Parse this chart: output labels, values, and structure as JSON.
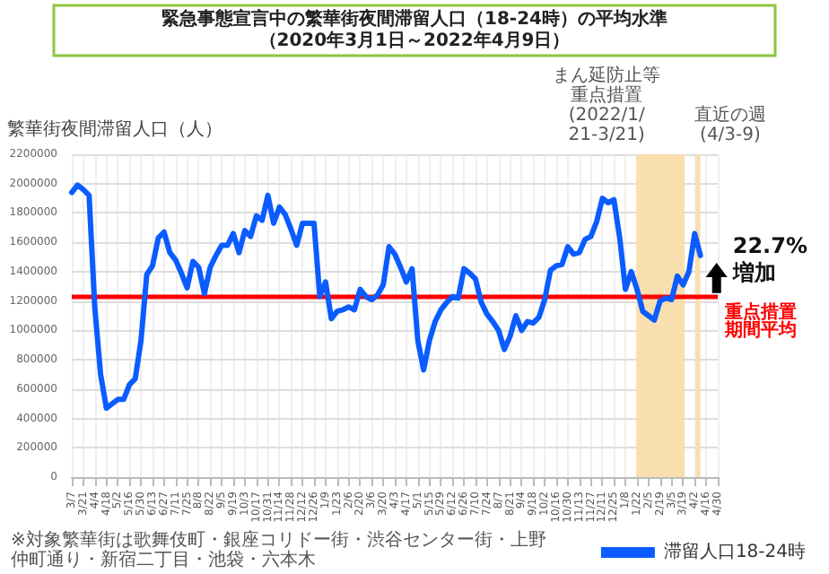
{
  "chart_data": {
    "type": "line",
    "title": "緊急事態宣言中の繁華街夜間滞留人口（18-24時）の平均水準",
    "subtitle": "（2020年3月1日～2022年4月9日）",
    "ylabel": "繁華街夜間滞留人口（人）",
    "x": [
      "2020-03-07",
      "2020-03-14",
      "2020-03-21",
      "2020-03-28",
      "2020-04-04",
      "2020-04-11",
      "2020-04-18",
      "2020-04-25",
      "2020-05-02",
      "2020-05-09",
      "2020-05-16",
      "2020-05-23",
      "2020-05-30",
      "2020-06-06",
      "2020-06-13",
      "2020-06-20",
      "2020-06-27",
      "2020-07-04",
      "2020-07-11",
      "2020-07-18",
      "2020-07-25",
      "2020-08-01",
      "2020-08-08",
      "2020-08-15",
      "2020-08-22",
      "2020-08-29",
      "2020-09-05",
      "2020-09-12",
      "2020-09-19",
      "2020-09-26",
      "2020-10-03",
      "2020-10-10",
      "2020-10-17",
      "2020-10-24",
      "2020-10-31",
      "2020-11-07",
      "2020-11-14",
      "2020-11-21",
      "2020-11-28",
      "2020-12-05",
      "2020-12-12",
      "2020-12-19",
      "2020-12-26",
      "2021-01-02",
      "2021-01-09",
      "2021-01-16",
      "2021-01-23",
      "2021-01-30",
      "2021-02-06",
      "2021-02-13",
      "2021-02-20",
      "2021-02-27",
      "2021-03-06",
      "2021-03-13",
      "2021-03-20",
      "2021-03-27",
      "2021-04-03",
      "2021-04-10",
      "2021-04-17",
      "2021-04-24",
      "2021-05-01",
      "2021-05-08",
      "2021-05-15",
      "2021-05-22",
      "2021-05-29",
      "2021-06-05",
      "2021-06-12",
      "2021-06-19",
      "2021-06-26",
      "2021-07-03",
      "2021-07-10",
      "2021-07-17",
      "2021-07-24",
      "2021-07-31",
      "2021-08-07",
      "2021-08-14",
      "2021-08-21",
      "2021-08-28",
      "2021-09-04",
      "2021-09-11",
      "2021-09-18",
      "2021-09-25",
      "2021-10-02",
      "2021-10-09",
      "2021-10-16",
      "2021-10-23",
      "2021-10-30",
      "2021-11-06",
      "2021-11-13",
      "2021-11-20",
      "2021-11-27",
      "2021-12-04",
      "2021-12-11",
      "2021-12-18",
      "2021-12-25",
      "2022-01-01",
      "2022-01-08",
      "2022-01-15",
      "2022-01-22",
      "2022-01-29",
      "2022-02-05",
      "2022-02-12",
      "2022-02-19",
      "2022-02-26",
      "2022-03-05",
      "2022-03-12",
      "2022-03-19",
      "2022-03-26",
      "2022-04-02",
      "2022-04-09"
    ],
    "series": [
      {
        "name": "滞留人口18-24時",
        "color": "#0a5cff",
        "values": [
          1940000,
          1990000,
          1960000,
          1920000,
          1150000,
          700000,
          470000,
          500000,
          530000,
          530000,
          630000,
          670000,
          930000,
          1380000,
          1440000,
          1630000,
          1670000,
          1530000,
          1480000,
          1390000,
          1290000,
          1470000,
          1430000,
          1250000,
          1430000,
          1510000,
          1580000,
          1580000,
          1660000,
          1530000,
          1680000,
          1640000,
          1780000,
          1750000,
          1920000,
          1730000,
          1840000,
          1790000,
          1690000,
          1580000,
          1730000,
          1730000,
          1730000,
          1230000,
          1330000,
          1080000,
          1130000,
          1140000,
          1160000,
          1140000,
          1280000,
          1230000,
          1210000,
          1240000,
          1310000,
          1570000,
          1520000,
          1430000,
          1330000,
          1420000,
          930000,
          730000,
          930000,
          1060000,
          1140000,
          1190000,
          1230000,
          1220000,
          1420000,
          1390000,
          1350000,
          1190000,
          1110000,
          1060000,
          1000000,
          870000,
          960000,
          1100000,
          1000000,
          1060000,
          1050000,
          1090000,
          1210000,
          1410000,
          1440000,
          1450000,
          1570000,
          1520000,
          1530000,
          1620000,
          1640000,
          1740000,
          1900000,
          1870000,
          1890000,
          1630000,
          1280000,
          1400000,
          1280000,
          1130000,
          1100000,
          1070000,
          1200000,
          1220000,
          1210000,
          1370000,
          1310000,
          1400000,
          1660000,
          1510000
        ]
      }
    ],
    "xlim": [
      "2020-03-07",
      "2022-04-30"
    ],
    "xticks": [
      {
        "value": "2020-03-07",
        "label": "3/7"
      },
      {
        "value": "2020-03-21",
        "label": "3/21"
      },
      {
        "value": "2020-04-04",
        "label": "4/4"
      },
      {
        "value": "2020-04-18",
        "label": "4/18"
      },
      {
        "value": "2020-05-02",
        "label": "5/2"
      },
      {
        "value": "2020-05-16",
        "label": "5/16"
      },
      {
        "value": "2020-05-30",
        "label": "5/30"
      },
      {
        "value": "2020-06-13",
        "label": "6/13"
      },
      {
        "value": "2020-06-27",
        "label": "6/27"
      },
      {
        "value": "2020-07-11",
        "label": "7/11"
      },
      {
        "value": "2020-07-25",
        "label": "7/25"
      },
      {
        "value": "2020-08-08",
        "label": "8/8"
      },
      {
        "value": "2020-08-22",
        "label": "8/22"
      },
      {
        "value": "2020-09-05",
        "label": "9/5"
      },
      {
        "value": "2020-09-19",
        "label": "9/19"
      },
      {
        "value": "2020-10-03",
        "label": "10/3"
      },
      {
        "value": "2020-10-17",
        "label": "10/17"
      },
      {
        "value": "2020-10-31",
        "label": "10/31"
      },
      {
        "value": "2020-11-14",
        "label": "11/14"
      },
      {
        "value": "2020-11-28",
        "label": "11/28"
      },
      {
        "value": "2020-12-12",
        "label": "12/12"
      },
      {
        "value": "2020-12-26",
        "label": "12/26"
      },
      {
        "value": "2021-01-09",
        "label": "1/9"
      },
      {
        "value": "2021-01-23",
        "label": "1/23"
      },
      {
        "value": "2021-02-06",
        "label": "2/6"
      },
      {
        "value": "2021-02-20",
        "label": "2/20"
      },
      {
        "value": "2021-03-06",
        "label": "3/6"
      },
      {
        "value": "2021-03-20",
        "label": "3/20"
      },
      {
        "value": "2021-04-03",
        "label": "4/3"
      },
      {
        "value": "2021-04-17",
        "label": "4/17"
      },
      {
        "value": "2021-05-01",
        "label": "5/1"
      },
      {
        "value": "2021-05-15",
        "label": "5/15"
      },
      {
        "value": "2021-05-29",
        "label": "5/29"
      },
      {
        "value": "2021-06-12",
        "label": "6/12"
      },
      {
        "value": "2021-06-26",
        "label": "6/26"
      },
      {
        "value": "2021-07-10",
        "label": "7/10"
      },
      {
        "value": "2021-07-24",
        "label": "7/24"
      },
      {
        "value": "2021-08-07",
        "label": "8/7"
      },
      {
        "value": "2021-08-21",
        "label": "8/21"
      },
      {
        "value": "2021-09-04",
        "label": "9/4"
      },
      {
        "value": "2021-09-18",
        "label": "9/18"
      },
      {
        "value": "2021-10-02",
        "label": "10/2"
      },
      {
        "value": "2021-10-16",
        "label": "10/16"
      },
      {
        "value": "2021-10-30",
        "label": "10/30"
      },
      {
        "value": "2021-11-13",
        "label": "11/13"
      },
      {
        "value": "2021-11-27",
        "label": "11/27"
      },
      {
        "value": "2021-12-11",
        "label": "12/11"
      },
      {
        "value": "2021-12-25",
        "label": "12/25"
      },
      {
        "value": "2022-01-08",
        "label": "1/8"
      },
      {
        "value": "2022-01-22",
        "label": "1/22"
      },
      {
        "value": "2022-02-05",
        "label": "2/5"
      },
      {
        "value": "2022-02-19",
        "label": "2/19"
      },
      {
        "value": "2022-03-05",
        "label": "3/5"
      },
      {
        "value": "2022-03-19",
        "label": "3/19"
      },
      {
        "value": "2022-04-02",
        "label": "4/2"
      },
      {
        "value": "2022-04-16",
        "label": "4/16"
      },
      {
        "value": "2022-04-30",
        "label": "4/30"
      }
    ],
    "ylim": [
      0,
      2200000
    ],
    "yticks": [
      0,
      200000,
      400000,
      600000,
      800000,
      1000000,
      1200000,
      1400000,
      1600000,
      1800000,
      2000000,
      2200000
    ],
    "grid": true,
    "legend": "bottom right",
    "marker": "none",
    "line_style": "solid",
    "ref_lines": [
      {
        "axis": "y",
        "value": 1230000,
        "label": "重点措置期間平均",
        "color": "#ff0000"
      }
    ],
    "bands": [
      {
        "axis": "x",
        "from": "2022-01-21",
        "to": "2022-03-21",
        "label": "まん延防止等重点措置(2022/1/21-3/21)",
        "color": "#f9dfb0"
      },
      {
        "axis": "x",
        "from": "2022-04-03",
        "to": "2022-04-09",
        "label": "直近の週(4/3-9)",
        "color": "#f9dfb0"
      }
    ],
    "annotations": [
      "22.7%\n増加",
      "※対象繁華街は歌舞伎町・銀座コリドー街・渋谷センター街・上野仲町通り・新宿二丁目・池袋・六本木"
    ]
  }
}
